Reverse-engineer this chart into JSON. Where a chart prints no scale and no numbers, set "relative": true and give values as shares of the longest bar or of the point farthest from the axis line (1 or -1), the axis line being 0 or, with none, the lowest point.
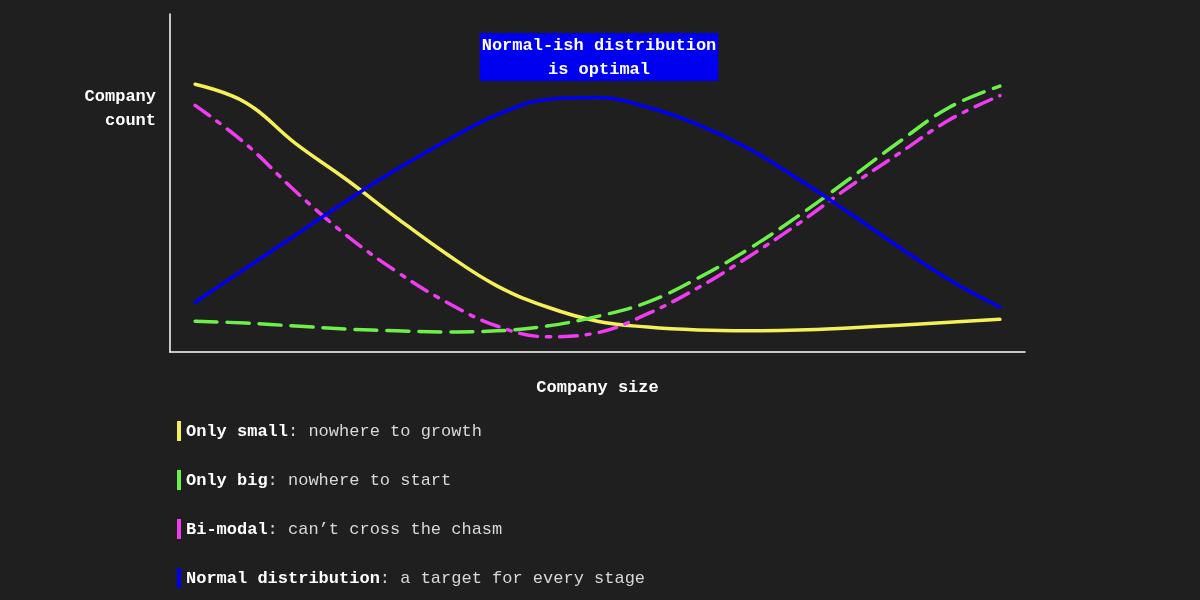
{
  "chart_data": {
    "type": "line",
    "title": "Normal-ish distribution\nis optimal",
    "xlabel": "Company size",
    "ylabel": "Company\ncount",
    "relative": true,
    "marker": "none",
    "grid": false,
    "legend": "bottom left",
    "categories": [
      null,
      null,
      null,
      null,
      null,
      null,
      null,
      null,
      null,
      null,
      null,
      null,
      null,
      null,
      null,
      null,
      null
    ],
    "series": [
      {
        "name": "Only small",
        "color": "#f5f05a",
        "line_style": "solid",
        "values": [
          1.0,
          0.932,
          0.778,
          0.645,
          0.502,
          0.366,
          0.247,
          0.168,
          0.115,
          0.093,
          0.082,
          0.079,
          0.082,
          0.09,
          0.1,
          0.111,
          0.122
        ]
      },
      {
        "name": "Only big",
        "color": "#6ef04a",
        "line_style": "dashed",
        "values": [
          0.115,
          0.108,
          0.097,
          0.086,
          0.079,
          0.075,
          0.079,
          0.097,
          0.133,
          0.186,
          0.276,
          0.384,
          0.509,
          0.645,
          0.785,
          0.914,
          0.993
        ]
      },
      {
        "name": "Bi-modal",
        "color": "#f03cf0",
        "line_style": "dashdot",
        "values": [
          0.921,
          0.778,
          0.599,
          0.437,
          0.301,
          0.186,
          0.097,
          0.057,
          0.072,
          0.143,
          0.24,
          0.355,
          0.48,
          0.616,
          0.742,
          0.867,
          0.957
        ]
      },
      {
        "name": "Normal distribution",
        "color": "#0000f0",
        "line_style": "solid",
        "values": [
          0.186,
          0.312,
          0.437,
          0.563,
          0.681,
          0.789,
          0.885,
          0.943,
          0.95,
          0.914,
          0.849,
          0.76,
          0.645,
          0.52,
          0.391,
          0.269,
          0.168
        ]
      }
    ],
    "annotations": [
      ": nowhere to growth",
      ": nowhere to start",
      ": can’t cross the chasm",
      ": a target for every stage"
    ]
  }
}
